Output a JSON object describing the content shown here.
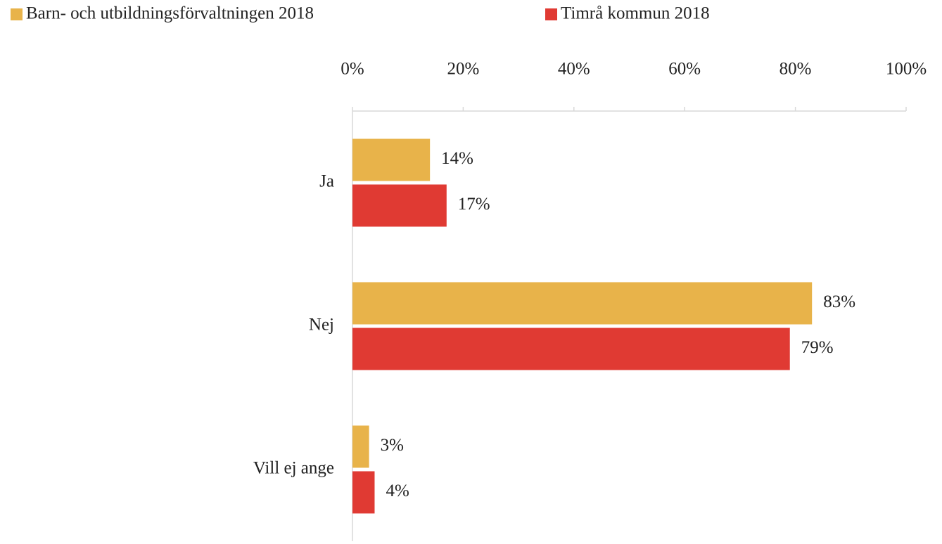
{
  "chart_data": {
    "type": "hbar",
    "categories": [
      "Ja",
      "Nej",
      "Vill ej ange"
    ],
    "series": [
      {
        "name": "Barn- och utbildningsförvaltningen 2018",
        "color": "#E8B34A",
        "values": [
          14,
          83,
          3
        ],
        "value_labels": [
          "14%",
          "83%",
          "3%"
        ]
      },
      {
        "name": "Timrå kommun 2018",
        "color": "#E03A33",
        "values": [
          17,
          79,
          4
        ],
        "value_labels": [
          "17%",
          "79%",
          "4%"
        ]
      }
    ],
    "xlim": [
      0,
      100
    ],
    "xticks": [
      {
        "value": 0,
        "label": "0%"
      },
      {
        "value": 20,
        "label": "20%"
      },
      {
        "value": 40,
        "label": "40%"
      },
      {
        "value": 60,
        "label": "60%"
      },
      {
        "value": 80,
        "label": "80%"
      },
      {
        "value": 100,
        "label": "100%"
      }
    ],
    "legend": "top"
  }
}
